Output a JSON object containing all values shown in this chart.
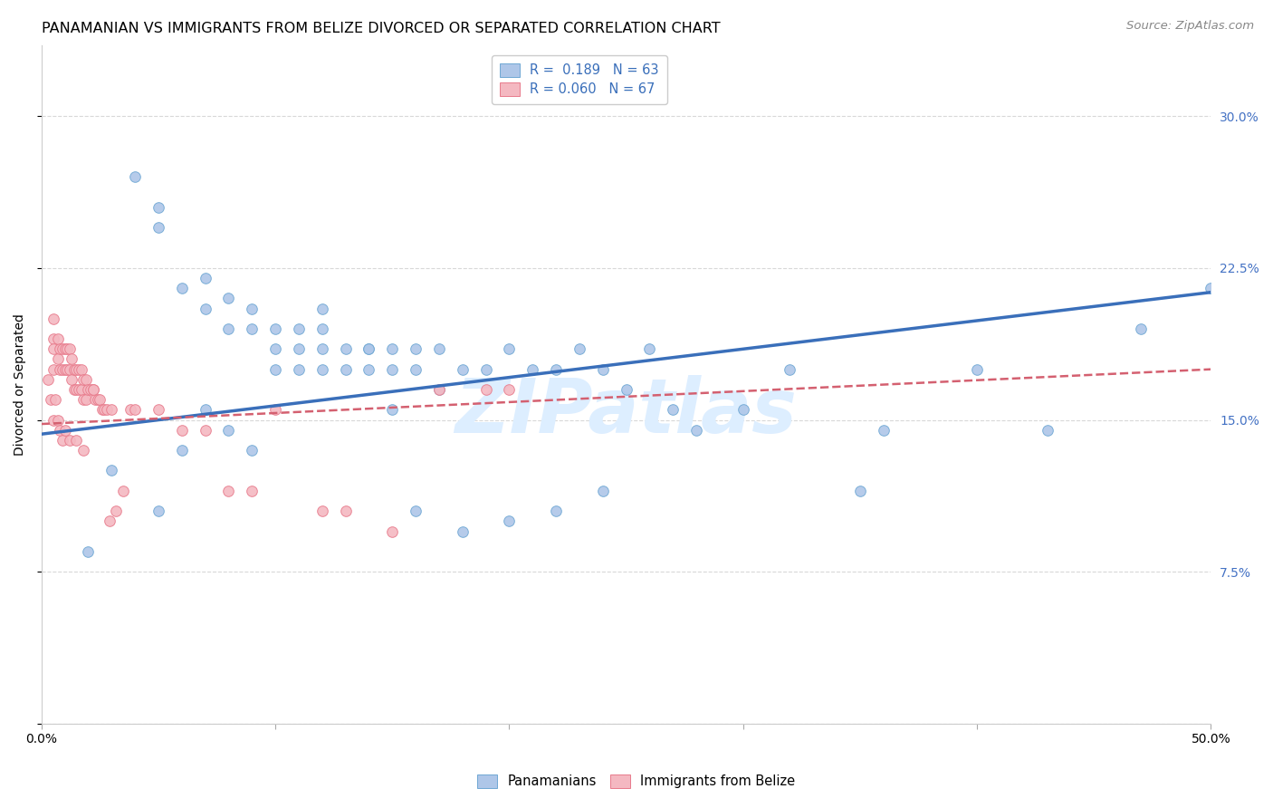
{
  "title": "PANAMANIAN VS IMMIGRANTS FROM BELIZE DIVORCED OR SEPARATED CORRELATION CHART",
  "source": "Source: ZipAtlas.com",
  "ylabel": "Divorced or Separated",
  "xlim": [
    0.0,
    0.5
  ],
  "ylim": [
    0.0,
    0.335
  ],
  "xticks": [
    0.0,
    0.1,
    0.2,
    0.3,
    0.4,
    0.5
  ],
  "yticks": [
    0.0,
    0.075,
    0.15,
    0.225,
    0.3
  ],
  "watermark": "ZIPatlas",
  "blue_scatter_x": [
    0.02,
    0.04,
    0.05,
    0.05,
    0.06,
    0.07,
    0.07,
    0.08,
    0.08,
    0.09,
    0.09,
    0.1,
    0.1,
    0.11,
    0.11,
    0.12,
    0.12,
    0.12,
    0.13,
    0.13,
    0.14,
    0.14,
    0.15,
    0.15,
    0.16,
    0.16,
    0.17,
    0.17,
    0.18,
    0.19,
    0.2,
    0.21,
    0.22,
    0.23,
    0.24,
    0.25,
    0.26,
    0.27,
    0.28,
    0.3,
    0.32,
    0.35,
    0.36,
    0.4,
    0.43,
    0.47,
    0.03,
    0.05,
    0.06,
    0.07,
    0.08,
    0.09,
    0.1,
    0.11,
    0.12,
    0.14,
    0.15,
    0.16,
    0.18,
    0.2,
    0.22,
    0.24,
    0.5
  ],
  "blue_scatter_y": [
    0.085,
    0.27,
    0.245,
    0.255,
    0.215,
    0.22,
    0.205,
    0.195,
    0.21,
    0.205,
    0.195,
    0.195,
    0.185,
    0.195,
    0.185,
    0.205,
    0.195,
    0.175,
    0.185,
    0.175,
    0.185,
    0.175,
    0.185,
    0.175,
    0.185,
    0.175,
    0.185,
    0.165,
    0.175,
    0.175,
    0.185,
    0.175,
    0.175,
    0.185,
    0.175,
    0.165,
    0.185,
    0.155,
    0.145,
    0.155,
    0.175,
    0.115,
    0.145,
    0.175,
    0.145,
    0.195,
    0.125,
    0.105,
    0.135,
    0.155,
    0.145,
    0.135,
    0.175,
    0.175,
    0.185,
    0.185,
    0.155,
    0.105,
    0.095,
    0.1,
    0.105,
    0.115,
    0.215
  ],
  "pink_scatter_x": [
    0.005,
    0.005,
    0.005,
    0.005,
    0.007,
    0.007,
    0.008,
    0.008,
    0.009,
    0.009,
    0.01,
    0.01,
    0.011,
    0.011,
    0.012,
    0.012,
    0.013,
    0.013,
    0.014,
    0.014,
    0.015,
    0.015,
    0.016,
    0.016,
    0.017,
    0.017,
    0.018,
    0.018,
    0.019,
    0.019,
    0.02,
    0.021,
    0.022,
    0.023,
    0.024,
    0.025,
    0.026,
    0.027,
    0.028,
    0.029,
    0.03,
    0.032,
    0.035,
    0.038,
    0.04,
    0.05,
    0.06,
    0.07,
    0.08,
    0.09,
    0.1,
    0.12,
    0.13,
    0.15,
    0.17,
    0.19,
    0.2,
    0.003,
    0.004,
    0.005,
    0.006,
    0.007,
    0.008,
    0.009,
    0.01,
    0.012,
    0.015,
    0.018,
    0.022
  ],
  "pink_scatter_y": [
    0.2,
    0.19,
    0.185,
    0.175,
    0.19,
    0.18,
    0.185,
    0.175,
    0.185,
    0.175,
    0.185,
    0.175,
    0.185,
    0.175,
    0.185,
    0.175,
    0.18,
    0.17,
    0.175,
    0.165,
    0.175,
    0.165,
    0.175,
    0.165,
    0.175,
    0.165,
    0.17,
    0.16,
    0.17,
    0.16,
    0.165,
    0.165,
    0.165,
    0.16,
    0.16,
    0.16,
    0.155,
    0.155,
    0.155,
    0.1,
    0.155,
    0.105,
    0.115,
    0.155,
    0.155,
    0.155,
    0.145,
    0.145,
    0.115,
    0.115,
    0.155,
    0.105,
    0.105,
    0.095,
    0.165,
    0.165,
    0.165,
    0.17,
    0.16,
    0.15,
    0.16,
    0.15,
    0.145,
    0.14,
    0.145,
    0.14,
    0.14,
    0.135,
    0.165
  ],
  "blue_line_x": [
    0.0,
    0.5
  ],
  "blue_line_y": [
    0.143,
    0.213
  ],
  "pink_line_x": [
    0.0,
    0.5
  ],
  "pink_line_y": [
    0.148,
    0.175
  ],
  "scatter_size": 70,
  "blue_color": "#aec6e8",
  "blue_edge_color": "#6fa8d4",
  "pink_color": "#f4b8c1",
  "pink_edge_color": "#e87b8c",
  "blue_line_color": "#3a6fba",
  "pink_line_color": "#d46070",
  "grid_color": "#d8d8d8",
  "background_color": "#ffffff",
  "title_fontsize": 11.5,
  "axis_label_fontsize": 10,
  "tick_fontsize": 10,
  "legend_fontsize": 10.5,
  "watermark_fontsize": 60,
  "watermark_color": "#ddeeff",
  "source_fontsize": 9.5,
  "right_ytick_color": "#4472c4"
}
